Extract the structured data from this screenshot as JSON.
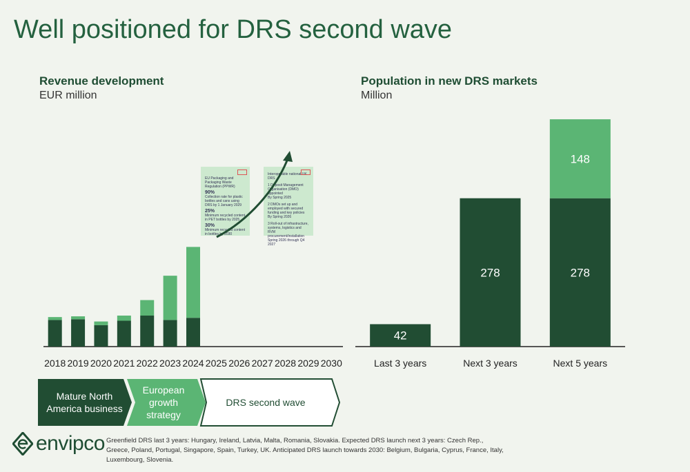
{
  "title": "Well positioned for DRS second wave",
  "revenue": {
    "title": "Revenue development",
    "unit": "EUR million"
  },
  "population": {
    "title": "Population in new DRS markets",
    "unit": "Million"
  },
  "phases": [
    {
      "label": "Mature North America business"
    },
    {
      "label": "European growth strategy"
    },
    {
      "label": "DRS second wave"
    }
  ],
  "docs": {
    "left": {
      "heading": "EU Packaging and Packaging Waste Regulation (PPWR)",
      "stats": [
        {
          "value": "90%",
          "text": "Collection rate for plastic bottles and cans using DRS by 1 January 2029"
        },
        {
          "value": "25%",
          "text": "Minimum recycled content in PET bottles by 2025"
        },
        {
          "value": "30%",
          "text": "Minimum recycled content in bottles by 2030"
        }
      ]
    },
    "right": {
      "heading": "Interoperable national UK DRS",
      "steps": [
        {
          "num": "1",
          "text": "Deposit Management Organisation (DMO) appointed",
          "date": "By Spring 2025"
        },
        {
          "num": "2",
          "text": "DMOs set up and employed with secured funding and key policies",
          "date": "By Spring 2026"
        },
        {
          "num": "3",
          "text": "Roll-out of infrastructure, systems, logistics and RVM procurement/installation",
          "date": "Spring 2026 through Q4 2027"
        }
      ]
    }
  },
  "logo": {
    "text": "envipco"
  },
  "footnote": "Greenfield DRS last 3 years: Hungary, Ireland, Latvia, Malta, Romania, Slovakia. Expected DRS launch next 3 years: Czech Rep., Greece, Poland, Portugal, Singapore, Spain, Turkey, UK. Anticipated DRS launch towards 2030: Belgium, Bulgaria, Cyprus, France, Italy, Luxembourg, Slovenia.",
  "colors": {
    "dark": "#214d33",
    "light": "#5bb574",
    "doc": "#cde9cf",
    "phase_outline": "#214d33"
  },
  "chart_data": [
    {
      "type": "bar",
      "stacked": true,
      "categories": [
        "2018",
        "2019",
        "2020",
        "2021",
        "2022",
        "2023",
        "2024",
        "2025",
        "2026",
        "2027",
        "2028",
        "2029",
        "2030"
      ],
      "series": [
        {
          "values": [
            36,
            37,
            29,
            35,
            42,
            36,
            39,
            null,
            null,
            null,
            null,
            null,
            null
          ]
        },
        {
          "values": [
            4,
            4,
            5,
            7,
            21,
            60,
            96,
            null,
            null,
            null,
            null,
            null,
            null
          ]
        }
      ],
      "ylim": [
        0,
        140
      ],
      "grid": false
    },
    {
      "type": "bar",
      "stacked": true,
      "categories": [
        "Last 3 years",
        "Next 3 years",
        "Next 5 years"
      ],
      "series": [
        {
          "values": [
            42,
            278,
            278
          ]
        },
        {
          "values": [
            0,
            0,
            148
          ]
        }
      ],
      "data_labels": [
        "42",
        "278",
        "278",
        "148"
      ],
      "ylim": [
        0,
        430
      ],
      "grid": false
    }
  ]
}
